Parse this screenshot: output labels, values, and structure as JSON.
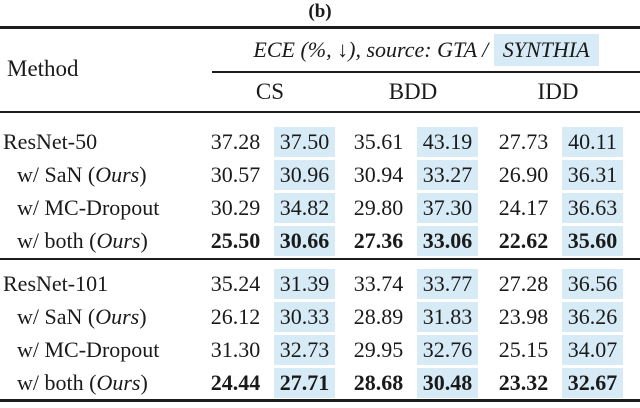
{
  "caption": "(b)",
  "colors": {
    "highlight": "#d7ebf7",
    "text": "#1a1a1a",
    "rule": "#1c1c1c"
  },
  "header": {
    "method_label": "Method",
    "metric_label": "ECE (%, ↓), source: GTA / ",
    "metric_highlight": "SYNTHIA",
    "subcolumns": [
      "CS",
      "BDD",
      "IDD"
    ]
  },
  "groups": [
    {
      "rows": [
        {
          "method": [
            {
              "t": "ResNet-50"
            }
          ],
          "indent": false,
          "bold": false,
          "values": [
            "37.28",
            "37.50",
            "35.61",
            "43.19",
            "27.73",
            "40.11"
          ]
        },
        {
          "method": [
            {
              "t": "w/ SaN ("
            },
            {
              "t": "Ours",
              "i": true
            },
            {
              "t": ")"
            }
          ],
          "indent": true,
          "bold": false,
          "values": [
            "30.57",
            "30.96",
            "30.94",
            "33.27",
            "26.90",
            "36.31"
          ]
        },
        {
          "method": [
            {
              "t": "w/ MC-Dropout"
            }
          ],
          "indent": true,
          "bold": false,
          "values": [
            "30.29",
            "34.82",
            "29.80",
            "37.30",
            "24.17",
            "36.63"
          ]
        },
        {
          "method": [
            {
              "t": "w/ both ("
            },
            {
              "t": "Ours",
              "i": true
            },
            {
              "t": ")"
            }
          ],
          "indent": true,
          "bold": true,
          "values": [
            "25.50",
            "30.66",
            "27.36",
            "33.06",
            "22.62",
            "35.60"
          ]
        }
      ]
    },
    {
      "rows": [
        {
          "method": [
            {
              "t": "ResNet-101"
            }
          ],
          "indent": false,
          "bold": false,
          "values": [
            "35.24",
            "31.39",
            "33.74",
            "33.77",
            "27.28",
            "36.56"
          ]
        },
        {
          "method": [
            {
              "t": "w/ SaN ("
            },
            {
              "t": "Ours",
              "i": true
            },
            {
              "t": ")"
            }
          ],
          "indent": true,
          "bold": false,
          "values": [
            "26.12",
            "30.33",
            "28.89",
            "31.83",
            "23.98",
            "36.26"
          ]
        },
        {
          "method": [
            {
              "t": "w/ MC-Dropout"
            }
          ],
          "indent": true,
          "bold": false,
          "values": [
            "31.30",
            "32.73",
            "29.95",
            "32.76",
            "25.15",
            "34.07"
          ]
        },
        {
          "method": [
            {
              "t": "w/ both ("
            },
            {
              "t": "Ours",
              "i": true
            },
            {
              "t": ")"
            }
          ],
          "indent": true,
          "bold": true,
          "values": [
            "24.44",
            "27.71",
            "28.68",
            "30.48",
            "23.32",
            "32.67"
          ]
        }
      ]
    }
  ]
}
